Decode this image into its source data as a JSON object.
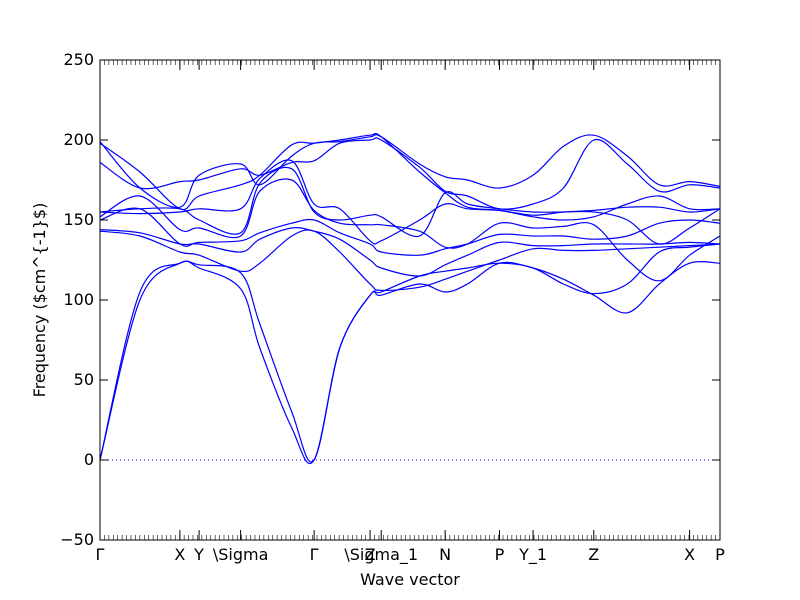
{
  "chart_data": {
    "type": "line",
    "xlabel": "Wave vector",
    "ylabel": "Frequency ($cm^{-1}$)",
    "ylim": [
      -50,
      250
    ],
    "yticks": [
      -50,
      0,
      50,
      100,
      150,
      200,
      250
    ],
    "xlim": [
      0,
      3.88
    ],
    "kpoints": [
      {
        "label": "Γ",
        "x": 0.0
      },
      {
        "label": "X",
        "x": 0.5
      },
      {
        "label": "Y",
        "x": 0.62
      },
      {
        "label": "\\Sigma",
        "x": 0.88
      },
      {
        "label": "Γ",
        "x": 1.34
      },
      {
        "label": "Z",
        "x": 1.69
      },
      {
        "label": "\\Sigma_1",
        "x": 1.76
      },
      {
        "label": "N",
        "x": 2.16
      },
      {
        "label": "P",
        "x": 2.5
      },
      {
        "label": "Y_1",
        "x": 2.71
      },
      {
        "label": "Z",
        "x": 3.09
      },
      {
        "label": "X",
        "x": 3.69
      },
      {
        "label": "P",
        "x": 3.88
      }
    ],
    "zero_line": {
      "y": 0,
      "style": "dotted",
      "color": "#0000ff"
    },
    "line_color": "#0000ff",
    "x": [
      0.0,
      0.25,
      0.5,
      0.62,
      0.88,
      1.0,
      1.2,
      1.34,
      1.5,
      1.69,
      1.76,
      2.0,
      2.16,
      2.3,
      2.5,
      2.71,
      2.9,
      3.09,
      3.3,
      3.5,
      3.69,
      3.88
    ],
    "series": [
      {
        "values": [
          0,
          100,
          123,
          120,
          107,
          70,
          20,
          0,
          70,
          103,
          103,
          110,
          105,
          110,
          123,
          120,
          113,
          103,
          92,
          110,
          123,
          123
        ]
      },
      {
        "values": [
          0,
          105,
          123,
          122,
          117,
          85,
          30,
          0,
          70,
          103,
          105,
          115,
          118,
          120,
          123,
          120,
          110,
          104,
          110,
          130,
          133,
          135
        ]
      },
      {
        "values": [
          143,
          140,
          130,
          128,
          118,
          123,
          140,
          143,
          130,
          110,
          106,
          108,
          113,
          118,
          125,
          132,
          131,
          131,
          132,
          133,
          134,
          135
        ]
      },
      {
        "values": [
          144,
          142,
          135,
          135,
          130,
          138,
          145,
          143,
          138,
          125,
          120,
          115,
          122,
          128,
          136,
          134,
          134,
          135,
          135,
          135,
          136,
          135
        ]
      },
      {
        "values": [
          150,
          157,
          135,
          136,
          137,
          142,
          148,
          150,
          142,
          135,
          130,
          128,
          132,
          135,
          141,
          140,
          140,
          138,
          140,
          148,
          150,
          148
        ]
      },
      {
        "values": [
          152,
          165,
          144,
          145,
          140,
          168,
          175,
          156,
          148,
          147,
          147,
          143,
          133,
          135,
          148,
          145,
          146,
          147,
          125,
          112,
          128,
          140
        ]
      },
      {
        "values": [
          155,
          157,
          157,
          150,
          142,
          173,
          182,
          155,
          150,
          153,
          152,
          140,
          167,
          160,
          157,
          155,
          155,
          155,
          150,
          135,
          145,
          157
        ]
      },
      {
        "values": [
          155,
          154,
          155,
          157,
          157,
          176,
          187,
          160,
          157,
          137,
          137,
          150,
          160,
          157,
          156,
          153,
          155,
          156,
          158,
          158,
          155,
          157
        ]
      },
      {
        "values": [
          198,
          180,
          157,
          165,
          172,
          178,
          197,
          198,
          200,
          203,
          202,
          180,
          167,
          158,
          156,
          152,
          150,
          152,
          160,
          165,
          157,
          157
        ]
      },
      {
        "values": [
          186,
          170,
          174,
          175,
          182,
          178,
          186,
          187,
          198,
          200,
          200,
          183,
          168,
          165,
          157,
          160,
          170,
          200,
          185,
          168,
          172,
          170
        ]
      },
      {
        "values": [
          199,
          170,
          158,
          178,
          185,
          172,
          190,
          198,
          199,
          202,
          202,
          185,
          177,
          175,
          170,
          178,
          196,
          203,
          190,
          172,
          174,
          171
        ]
      }
    ]
  }
}
